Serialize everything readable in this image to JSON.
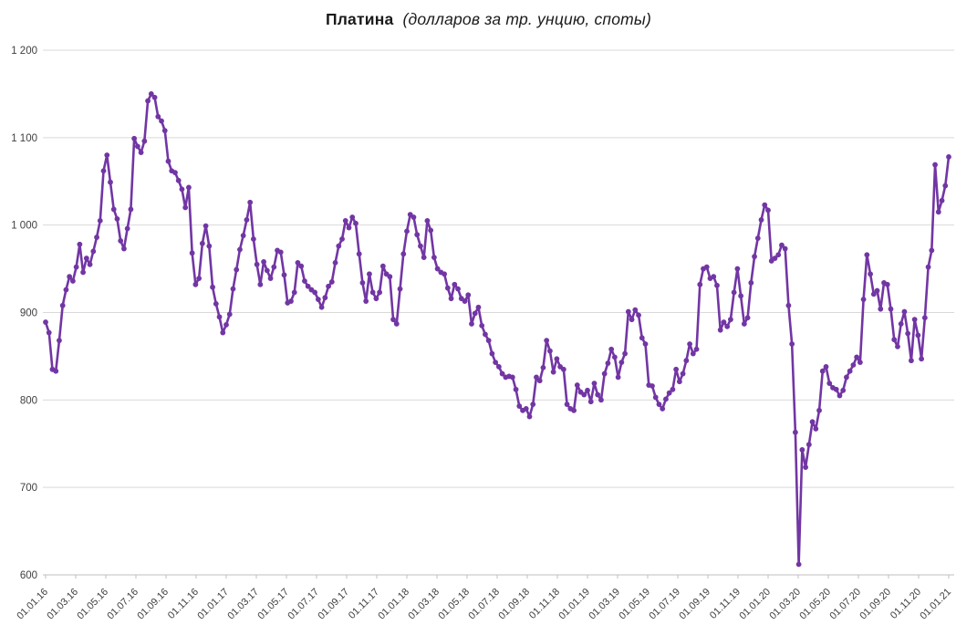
{
  "title": {
    "main": "Платина",
    "subtitle": "(долларов за тр. унцию, споты)"
  },
  "chart_data": {
    "type": "line",
    "title": "Платина (долларов за тр. унцию, споты)",
    "series_name": "Платина, спот, долл. за тройскую унцию",
    "frequency": "weekly",
    "legend_position": "none",
    "grid": "horizontal",
    "marker": "circle",
    "ylim": [
      600,
      1200
    ],
    "y_ticks": [
      {
        "value": 600,
        "label": "600"
      },
      {
        "value": 700,
        "label": "700"
      },
      {
        "value": 800,
        "label": "800"
      },
      {
        "value": 900,
        "label": "900"
      },
      {
        "value": 1000,
        "label": "1 000"
      },
      {
        "value": 1100,
        "label": "1 100"
      },
      {
        "value": 1200,
        "label": "1 200"
      }
    ],
    "x_tick_labels": [
      "01.01.16",
      "01.03.16",
      "01.05.16",
      "01.07.16",
      "01.09.16",
      "01.11.16",
      "01.01.17",
      "01.03.17",
      "01.05.17",
      "01.07.17",
      "01.09.17",
      "01.11.17",
      "01.01.18",
      "01.03.18",
      "01.05.18",
      "01.07.18",
      "01.09.18",
      "01.11.18",
      "01.01.19",
      "01.03.19",
      "01.05.19",
      "01.07.19",
      "01.09.19",
      "01.11.19",
      "01.01.20",
      "01.03.20",
      "01.05.20",
      "01.07.20",
      "01.09.20",
      "01.11.20",
      "01.01.21"
    ],
    "values": [
      889,
      877,
      835,
      833,
      868,
      908,
      926,
      941,
      936,
      952,
      978,
      946,
      962,
      955,
      970,
      986,
      1005,
      1062,
      1080,
      1049,
      1018,
      1007,
      982,
      973,
      996,
      1018,
      1099,
      1090,
      1083,
      1096,
      1142,
      1150,
      1146,
      1124,
      1119,
      1108,
      1073,
      1062,
      1060,
      1051,
      1041,
      1020,
      1043,
      968,
      932,
      939,
      979,
      999,
      976,
      929,
      910,
      895,
      877,
      886,
      898,
      927,
      949,
      972,
      988,
      1006,
      1026,
      984,
      955,
      932,
      958,
      948,
      939,
      952,
      971,
      969,
      943,
      911,
      913,
      923,
      957,
      953,
      936,
      930,
      926,
      923,
      915,
      906,
      917,
      930,
      935,
      957,
      976,
      984,
      1005,
      997,
      1009,
      1002,
      967,
      934,
      913,
      944,
      923,
      916,
      923,
      953,
      944,
      941,
      892,
      887,
      927,
      967,
      993,
      1012,
      1009,
      989,
      976,
      963,
      1005,
      994,
      963,
      950,
      946,
      944,
      928,
      916,
      932,
      927,
      916,
      913,
      920,
      887,
      899,
      906,
      885,
      875,
      868,
      853,
      843,
      838,
      830,
      826,
      827,
      826,
      812,
      793,
      788,
      790,
      781,
      795,
      826,
      822,
      837,
      868,
      856,
      832,
      847,
      838,
      835,
      795,
      790,
      788,
      817,
      809,
      806,
      811,
      798,
      819,
      806,
      800,
      830,
      842,
      858,
      849,
      826,
      843,
      853,
      901,
      892,
      903,
      897,
      871,
      864,
      817,
      816,
      803,
      795,
      790,
      801,
      808,
      812,
      835,
      821,
      830,
      845,
      864,
      853,
      858,
      932,
      950,
      952,
      939,
      941,
      931,
      880,
      889,
      884,
      892,
      923,
      950,
      919,
      887,
      894,
      934,
      964,
      985,
      1006,
      1023,
      1017,
      959,
      962,
      966,
      977,
      973,
      908,
      864,
      763,
      612,
      743,
      723,
      749,
      775,
      767,
      788,
      833,
      838,
      819,
      814,
      812,
      805,
      811,
      826,
      833,
      840,
      849,
      843,
      915,
      966,
      944,
      921,
      925,
      904,
      934,
      932,
      904,
      869,
      861,
      887,
      901,
      876,
      845,
      892,
      874,
      847,
      894,
      952,
      971,
      1069,
      1015,
      1028,
      1045,
      1078
    ],
    "colors": {
      "line": "#7236A4",
      "marker": "#7236A4",
      "gridline": "#D9D9D9",
      "axis": "#BFBFBF",
      "tick_label": "#404040",
      "title": "#1A1A1A"
    }
  }
}
